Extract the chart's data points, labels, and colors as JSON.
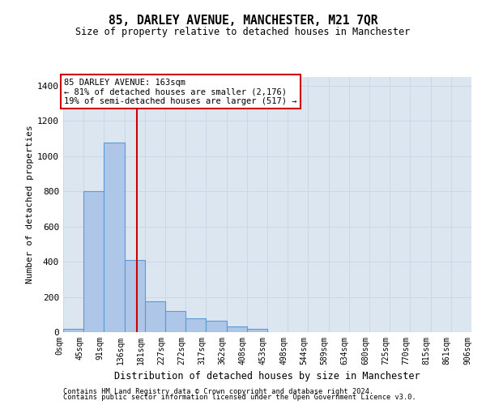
{
  "title": "85, DARLEY AVENUE, MANCHESTER, M21 7QR",
  "subtitle": "Size of property relative to detached houses in Manchester",
  "xlabel": "Distribution of detached houses by size in Manchester",
  "ylabel": "Number of detached properties",
  "footnote1": "Contains HM Land Registry data © Crown copyright and database right 2024.",
  "footnote2": "Contains public sector information licensed under the Open Government Licence v3.0.",
  "bin_labels": [
    "0sqm",
    "45sqm",
    "91sqm",
    "136sqm",
    "181sqm",
    "227sqm",
    "272sqm",
    "317sqm",
    "362sqm",
    "408sqm",
    "453sqm",
    "498sqm",
    "544sqm",
    "589sqm",
    "634sqm",
    "680sqm",
    "725sqm",
    "770sqm",
    "815sqm",
    "861sqm",
    "906sqm"
  ],
  "bar_values": [
    20,
    800,
    1075,
    410,
    175,
    120,
    80,
    65,
    30,
    20,
    0,
    0,
    0,
    0,
    0,
    0,
    0,
    0,
    0,
    0
  ],
  "bar_color": "#aec6e8",
  "bar_edge_color": "#5b9bd5",
  "vline_color": "#cc0000",
  "vline_bin": 3.6,
  "ylim": [
    0,
    1450
  ],
  "yticks": [
    0,
    200,
    400,
    600,
    800,
    1000,
    1200,
    1400
  ],
  "annotation_line1": "85 DARLEY AVENUE: 163sqm",
  "annotation_line2": "← 81% of detached houses are smaller (2,176)",
  "annotation_line3": "19% of semi-detached houses are larger (517) →",
  "annotation_box_color": "#ffffff",
  "annotation_box_edge": "#cc0000",
  "background_color": "#dce6f0"
}
